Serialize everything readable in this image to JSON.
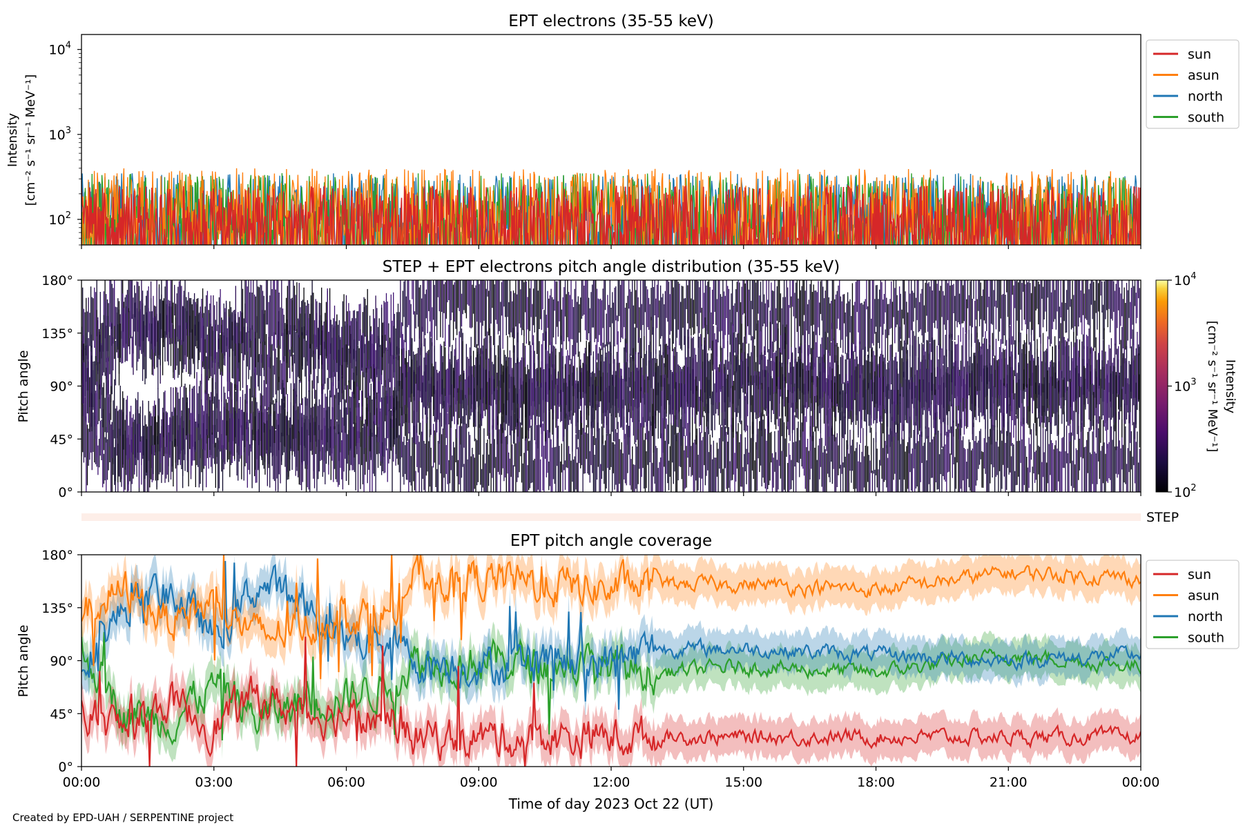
{
  "footer": "Created by EPD-UAH / SERPENTINE project",
  "chart_data": [
    {
      "type": "line",
      "title": "EPT electrons (35-55 keV)",
      "ylabel_line1": "Intensity",
      "ylabel_line2": "[cm⁻² s⁻¹ sr⁻¹ MeV⁻¹]",
      "yscale": "log",
      "ylim": [
        50,
        15000
      ],
      "yticks": [
        {
          "value": 100,
          "base": "10",
          "exp": "2"
        },
        {
          "value": 1000,
          "base": "10",
          "exp": "3"
        },
        {
          "value": 10000,
          "base": "10",
          "exp": "4"
        }
      ],
      "x_hours": [
        0,
        24
      ],
      "legend_location": "upper right, outside",
      "series": [
        {
          "name": "sun",
          "color": "#d62728",
          "typical_range": [
            55,
            250
          ]
        },
        {
          "name": "asun",
          "color": "#ff7f0e",
          "typical_range": [
            55,
            400
          ]
        },
        {
          "name": "north",
          "color": "#1f77b4",
          "typical_range": [
            55,
            350
          ]
        },
        {
          "name": "south",
          "color": "#2ca02c",
          "typical_range": [
            55,
            350
          ]
        }
      ]
    },
    {
      "type": "heatmap",
      "title": "STEP + EPT electrons pitch angle distribution (35-55 keV)",
      "ylabel": "Pitch angle",
      "ylim": [
        0,
        180
      ],
      "yticks": [
        "0°",
        "45°",
        "90°",
        "135°",
        "180°"
      ],
      "colorbar": {
        "label_line1": "Intensity",
        "label_line2": "[cm⁻² s⁻¹ sr⁻¹ MeV⁻¹]",
        "scale": "log",
        "range": [
          100,
          10000
        ],
        "ticks": [
          {
            "base": "10",
            "exp": "2"
          },
          {
            "base": "10",
            "exp": "3"
          },
          {
            "base": "10",
            "exp": "4"
          }
        ],
        "colormap": "inferno"
      }
    },
    {
      "type": "strip",
      "label": "STEP",
      "color": "#fdeee8"
    },
    {
      "type": "line",
      "title": "EPT pitch angle coverage",
      "ylabel": "Pitch angle",
      "ylim": [
        0,
        180
      ],
      "yticks": [
        "0°",
        "45°",
        "90°",
        "135°",
        "180°"
      ],
      "xlabel": "Time of day 2023 Oct 22 (UT)",
      "xticks": [
        "00:00",
        "03:00",
        "06:00",
        "09:00",
        "12:00",
        "15:00",
        "18:00",
        "21:00",
        "00:00"
      ],
      "legend_location": "upper right, outside",
      "series": [
        {
          "name": "sun",
          "color": "#d62728",
          "x_hours": [
            0,
            1,
            2,
            3,
            4,
            5,
            6,
            7,
            7.5,
            9,
            12,
            13,
            15,
            18,
            21,
            24
          ],
          "values": [
            45,
            30,
            55,
            35,
            60,
            45,
            45,
            40,
            25,
            25,
            25,
            25,
            25,
            25,
            25,
            25
          ]
        },
        {
          "name": "asun",
          "color": "#ff7f0e",
          "x_hours": [
            0,
            1,
            2,
            3,
            4,
            5,
            6,
            7,
            7.5,
            9,
            12,
            13,
            15,
            18,
            21,
            24
          ],
          "values": [
            130,
            150,
            125,
            140,
            110,
            120,
            130,
            130,
            160,
            160,
            150,
            155,
            155,
            150,
            165,
            160
          ]
        },
        {
          "name": "north",
          "color": "#1f77b4",
          "x_hours": [
            0,
            1,
            2,
            3,
            4,
            5,
            6,
            7,
            7.5,
            9,
            12,
            13,
            15,
            18,
            21,
            24
          ],
          "values": [
            90,
            135,
            150,
            110,
            155,
            140,
            110,
            110,
            90,
            85,
            90,
            100,
            100,
            95,
            90,
            95
          ]
        },
        {
          "name": "south",
          "color": "#2ca02c",
          "x_hours": [
            0,
            1,
            2,
            3,
            4,
            5,
            6,
            7,
            7.5,
            9,
            12,
            13,
            15,
            18,
            21,
            24
          ],
          "values": [
            100,
            45,
            40,
            70,
            40,
            55,
            60,
            70,
            90,
            90,
            85,
            80,
            85,
            80,
            95,
            85
          ]
        }
      ]
    }
  ]
}
